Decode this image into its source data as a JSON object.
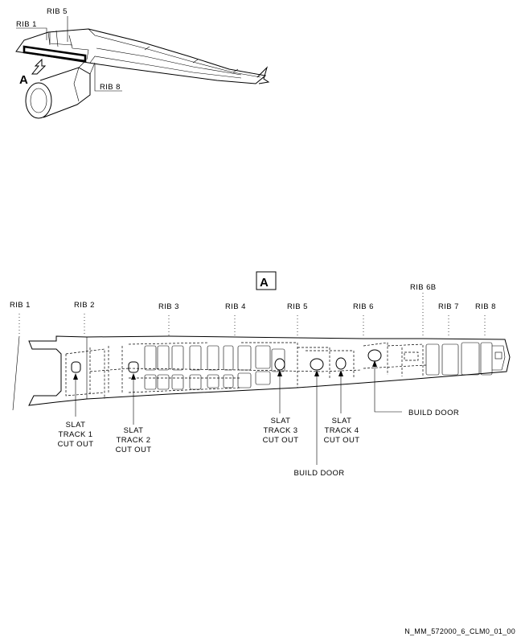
{
  "locator": {
    "rib1": "RIB 1",
    "rib5": "RIB 5",
    "rib8": "RIB 8",
    "view_letter": "A"
  },
  "detail": {
    "view_box_letter": "A",
    "ribs": [
      "RIB 1",
      "RIB 2",
      "RIB 3",
      "RIB 4",
      "RIB 5",
      "RIB 6",
      "RIB 6B",
      "RIB 7",
      "RIB 8"
    ],
    "slat1": [
      "SLAT",
      "TRACK 1",
      "CUT OUT"
    ],
    "slat2": [
      "SLAT",
      "TRACK 2",
      "CUT OUT"
    ],
    "slat3": [
      "SLAT",
      "TRACK 3",
      "CUT OUT"
    ],
    "slat4": [
      "SLAT",
      "TRACK 4",
      "CUT OUT"
    ],
    "build_door_1": "BUILD DOOR",
    "build_door_2": "BUILD DOOR"
  },
  "reference": "N_MM_572000_6_CLM0_01_00"
}
